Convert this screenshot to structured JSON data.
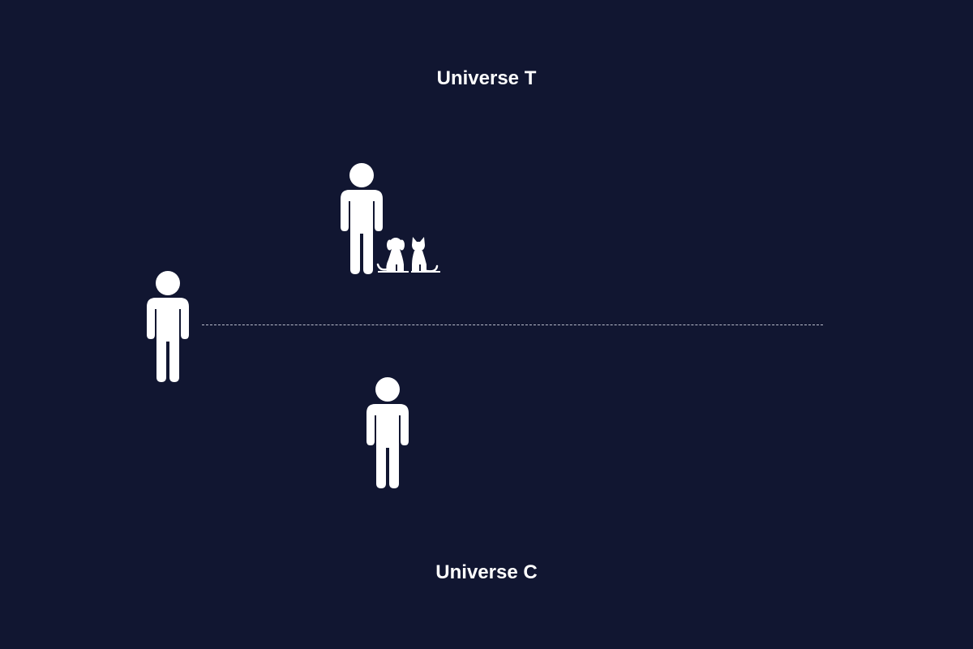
{
  "diagram": {
    "top_label": "Universe T",
    "bottom_label": "Universe C",
    "colors": {
      "background": "#111631",
      "foreground": "#ffffff",
      "divider": "#b9bccb"
    },
    "icons": [
      "person-icon",
      "person-icon",
      "person-icon",
      "dog-icon",
      "cat-icon"
    ]
  }
}
